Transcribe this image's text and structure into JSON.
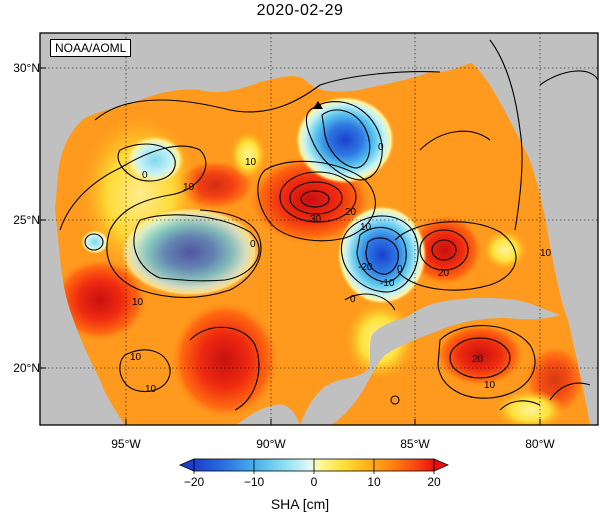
{
  "title": "2020-02-29",
  "source_label": "NOAA/AOML",
  "lat_labels": [
    "30°N",
    "25°N",
    "20°N"
  ],
  "lon_labels": [
    "95°W",
    "90°W",
    "85°W",
    "80°W"
  ],
  "colorbar": {
    "ticks": [
      "−20",
      "−10",
      "0",
      "10",
      "20"
    ],
    "title": "SHA [cm]",
    "colors": [
      "#1a3fcf",
      "#2a6ee0",
      "#3b9ae6",
      "#57c4ee",
      "#8fe0f2",
      "#c8f3f6",
      "#fff9a0",
      "#ffe23a",
      "#ffc21c",
      "#ff9d14",
      "#ff7a10",
      "#fb5010",
      "#ee2010"
    ]
  },
  "contour_labels": [
    "0",
    "10",
    "10",
    "0",
    "30",
    "20",
    "10",
    "0",
    "-10",
    "-20",
    "20",
    "20",
    "10",
    "10",
    "10",
    "0",
    "0",
    "10",
    "10"
  ],
  "colors": {
    "land": "#c0c0c0",
    "base": "#ff9a1e",
    "frame": "#000000"
  }
}
